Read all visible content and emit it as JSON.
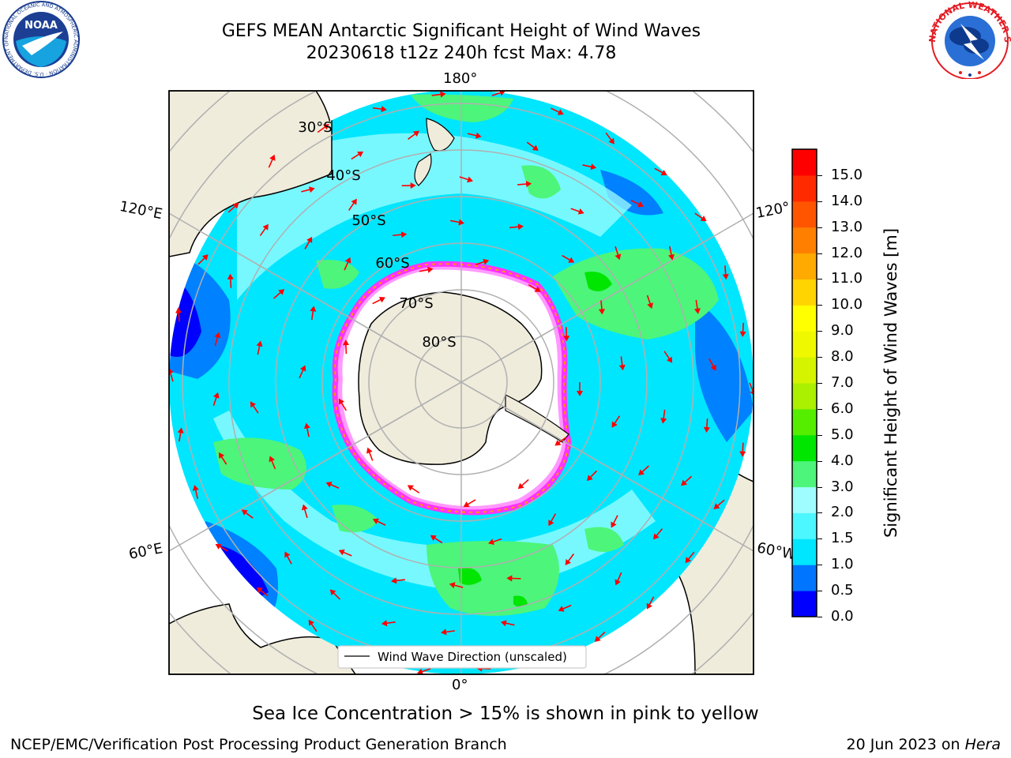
{
  "header": {
    "title_line1": "GEFS MEAN Antarctic Significant Height of Wind Waves",
    "title_line2": "20230618 t12z 240h fcst   Max: 4.78"
  },
  "logos": {
    "left": {
      "name": "noaa-logo",
      "text": "NOAA",
      "ring_text": "NATIONAL OCEANIC AND ATMOSPHERIC ADMINISTRATION · U.S. DEPARTMENT OF COMMERCE"
    },
    "right": {
      "name": "nws-logo",
      "ring_text": "NATIONAL WEATHER SERVICE"
    }
  },
  "map": {
    "projection": "south-polar-stereographic",
    "lon_labels": {
      "top": "180°",
      "bottom": "0°",
      "left_upper": "120°E",
      "left_lower": "60°E",
      "right_upper": "120°",
      "right_lower": "60°W"
    },
    "lat_labels": [
      "30°S",
      "40°S",
      "50°S",
      "60°S",
      "70°S",
      "80°S"
    ],
    "legend": "Wind Wave Direction (unscaled)",
    "colors": {
      "land": "#efecdc",
      "ice": "#ffffff",
      "grid": "#b0b0b0",
      "arrow": "#ff0000",
      "sea_ice_edge": [
        "#ff33ff",
        "#ff9900",
        "#ffff00"
      ]
    }
  },
  "colorbar": {
    "label": "Significant Height of Wind Waves [m]",
    "ticks": [
      "0.0",
      "0.5",
      "1.0",
      "1.5",
      "2.0",
      "3.0",
      "4.0",
      "5.0",
      "6.0",
      "7.0",
      "8.0",
      "9.0",
      "10.0",
      "11.0",
      "12.0",
      "13.0",
      "14.0",
      "15.0"
    ],
    "colors": [
      "#0000ff",
      "#0075ff",
      "#00e6ff",
      "#4df7ff",
      "#9ffdff",
      "#4df57a",
      "#00e600",
      "#55ee00",
      "#aaf000",
      "#d4f400",
      "#f0f800",
      "#ffff00",
      "#ffd400",
      "#ffaa00",
      "#ff8000",
      "#ff5500",
      "#ff2a00",
      "#ff0000"
    ]
  },
  "footer": {
    "note": "Sea Ice Concentration > 15% is shown in pink to yellow",
    "left": "NCEP/EMC/Verification Post Processing Product Generation Branch",
    "right_prefix": "20 Jun 2023 on ",
    "right_host": "Hera"
  }
}
